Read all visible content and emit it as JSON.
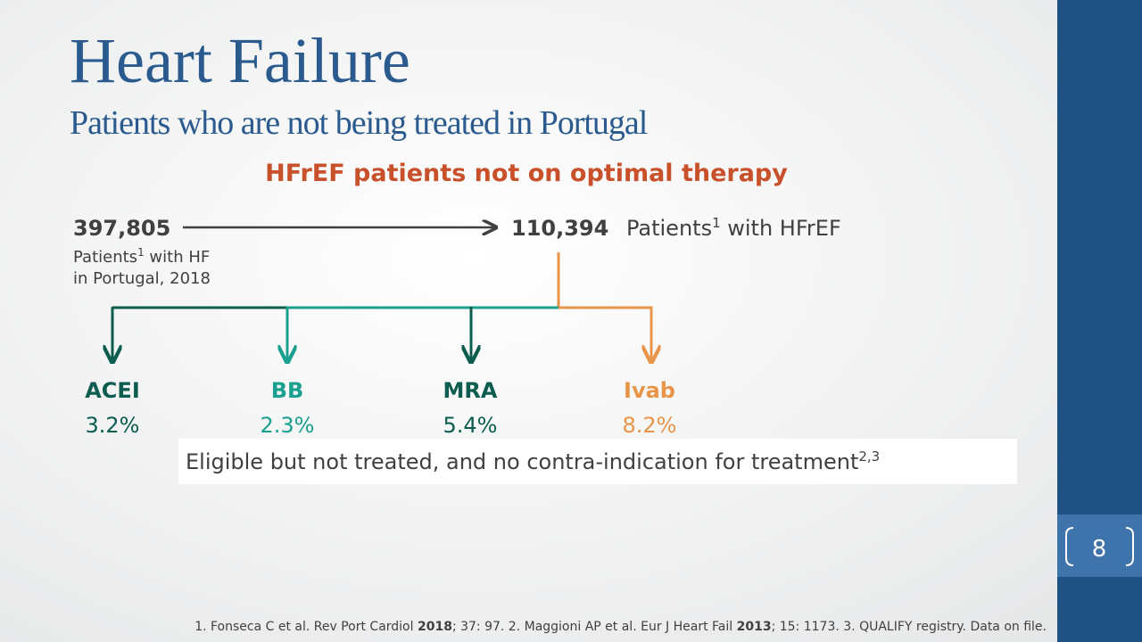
{
  "header": {
    "title": "Heart Failure",
    "subtitle": "Patients who are not being treated in Portugal"
  },
  "heading": "HFrEF patients not on optimal therapy",
  "flow": {
    "source": {
      "count": "397,805",
      "label_line1": [
        "Patients",
        "1",
        " with HF"
      ],
      "label_line2": "in Portugal, 2018"
    },
    "target": {
      "count": "110,394",
      "label": [
        "Patients",
        "1",
        " with HFrEF"
      ]
    },
    "branches": [
      {
        "name": "ACEI",
        "percent": "3.2%"
      },
      {
        "name": "BB",
        "percent": "2.3%"
      },
      {
        "name": "MRA",
        "percent": "5.4%"
      },
      {
        "name": "Ivab",
        "percent": "8.2%"
      }
    ],
    "note": [
      "Eligible but not treated, and no contra-indication for treatment",
      "2,3"
    ]
  },
  "page_number": "8",
  "footnote": [
    "1. Fonseca C et al. Rev Port Cardiol ",
    "2018",
    "; 37: 97. 2. Maggioni AP et al. Eur J Heart Fail ",
    "2013",
    "; 15: 1173. 3. QUALIFY registry. Data on file."
  ]
}
